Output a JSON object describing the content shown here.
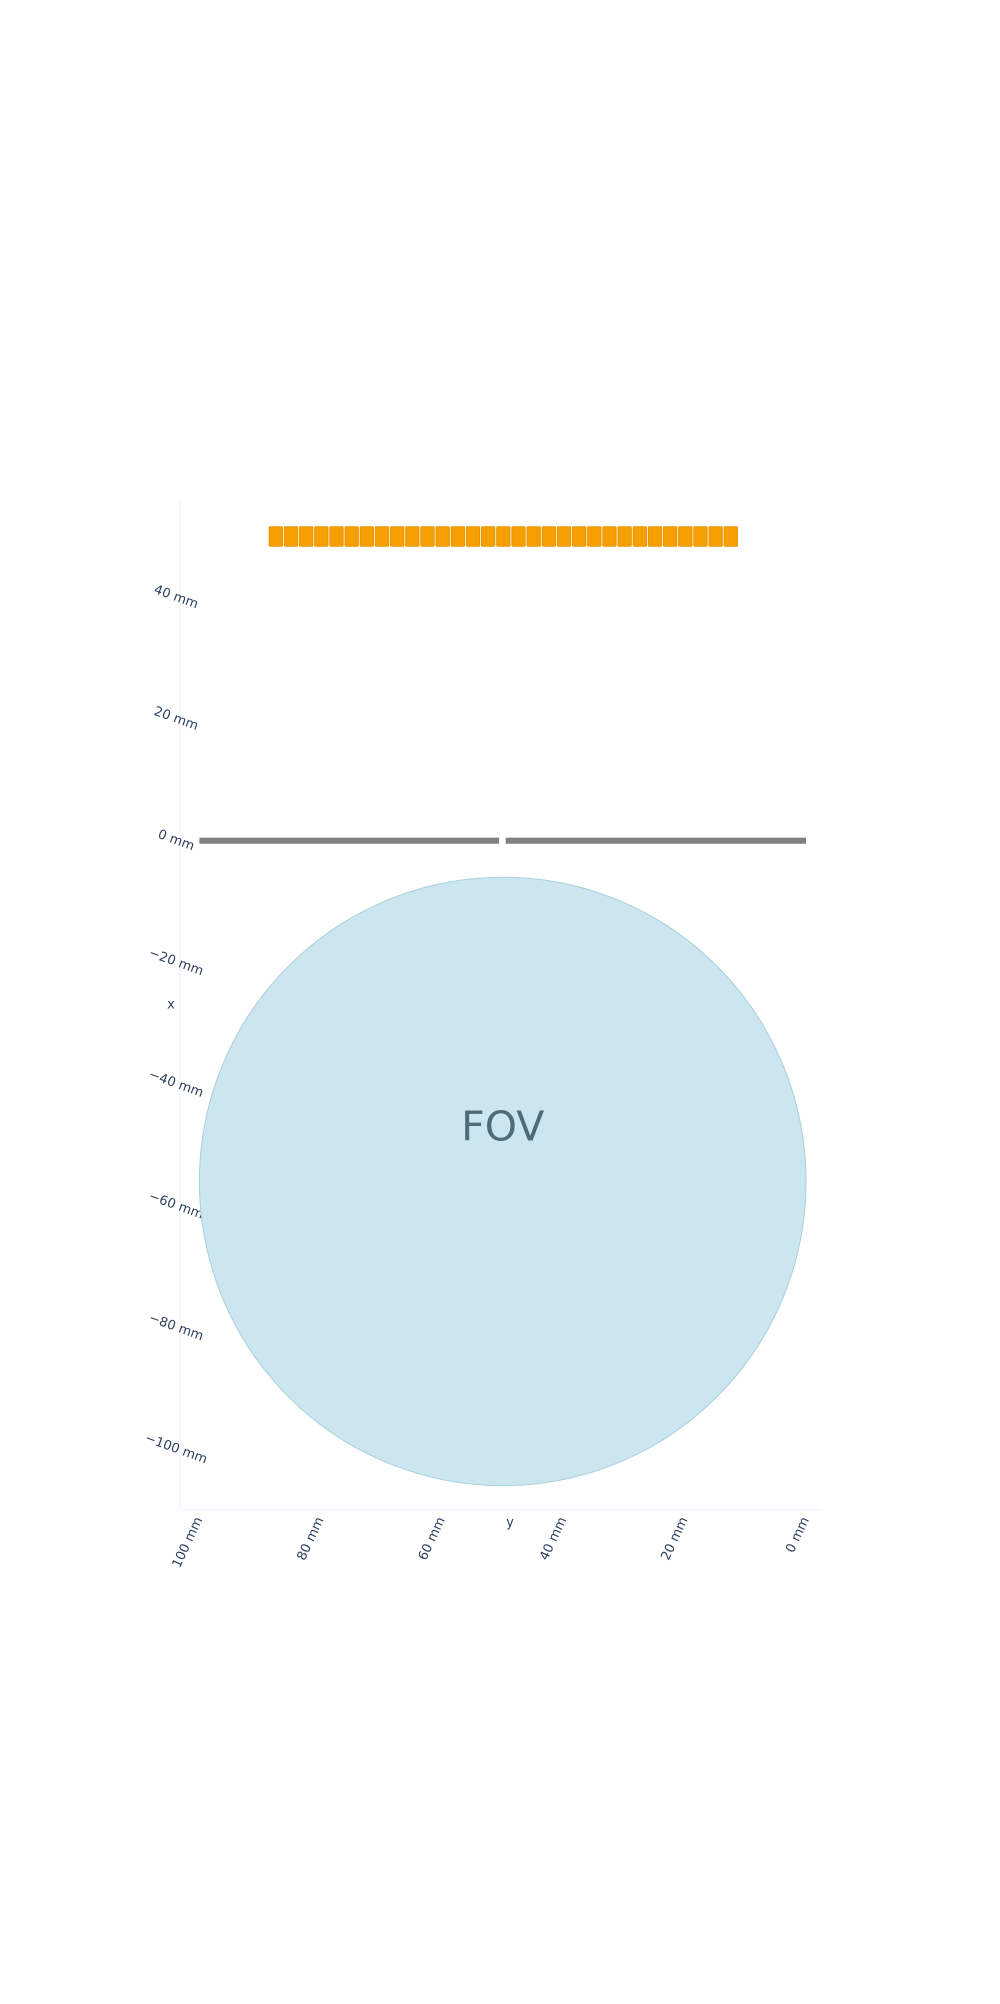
{
  "chart_data": {
    "type": "shapes",
    "xlabel": "y",
    "ylabel": "x",
    "xlim": [
      103.2,
      -2.3
    ],
    "ylim": [
      -110,
      56
    ],
    "xticks": [
      {
        "value": 100,
        "label": "100 mm"
      },
      {
        "value": 80,
        "label": "80 mm"
      },
      {
        "value": 60,
        "label": "60 mm"
      },
      {
        "value": 40,
        "label": "40 mm"
      },
      {
        "value": 20,
        "label": "20 mm"
      },
      {
        "value": 0,
        "label": "0 mm"
      }
    ],
    "yticks": [
      {
        "value": 40,
        "label": "40 mm"
      },
      {
        "value": 20,
        "label": "20 mm"
      },
      {
        "value": 0,
        "label": "0 mm"
      },
      {
        "value": -20,
        "label": "−20 mm"
      },
      {
        "value": -40,
        "label": "−40 mm"
      },
      {
        "value": -60,
        "label": "−60 mm"
      },
      {
        "value": -80,
        "label": "−80 mm"
      },
      {
        "value": -100,
        "label": "−100 mm"
      }
    ],
    "circles": [
      {
        "label": "FOV",
        "color": "#cbe6ef",
        "center": [
          50,
          -56
        ],
        "r": 50
      }
    ],
    "bars": [
      {
        "color": "#808080",
        "h": [
          100,
          50.6
        ],
        "v": [
          -0.5,
          0.5
        ]
      },
      {
        "color": "#808080",
        "h": [
          49.5,
          0
        ],
        "v": [
          -0.5,
          0.5
        ]
      }
    ],
    "crystal_color": "#f5a000",
    "crystal_v": [
      48.4,
      51.6
    ],
    "crystal_width": 2.2,
    "crystal_h": [
      88.5,
      86,
      83.5,
      81,
      78.5,
      76,
      73.5,
      71,
      68.5,
      66,
      63.5,
      61,
      58.5,
      56,
      53.5,
      51,
      48.5,
      46,
      43.5,
      41,
      38.5,
      36,
      33.5,
      31,
      28.5,
      26,
      23.5,
      21,
      18.5,
      16,
      13.5
    ]
  }
}
